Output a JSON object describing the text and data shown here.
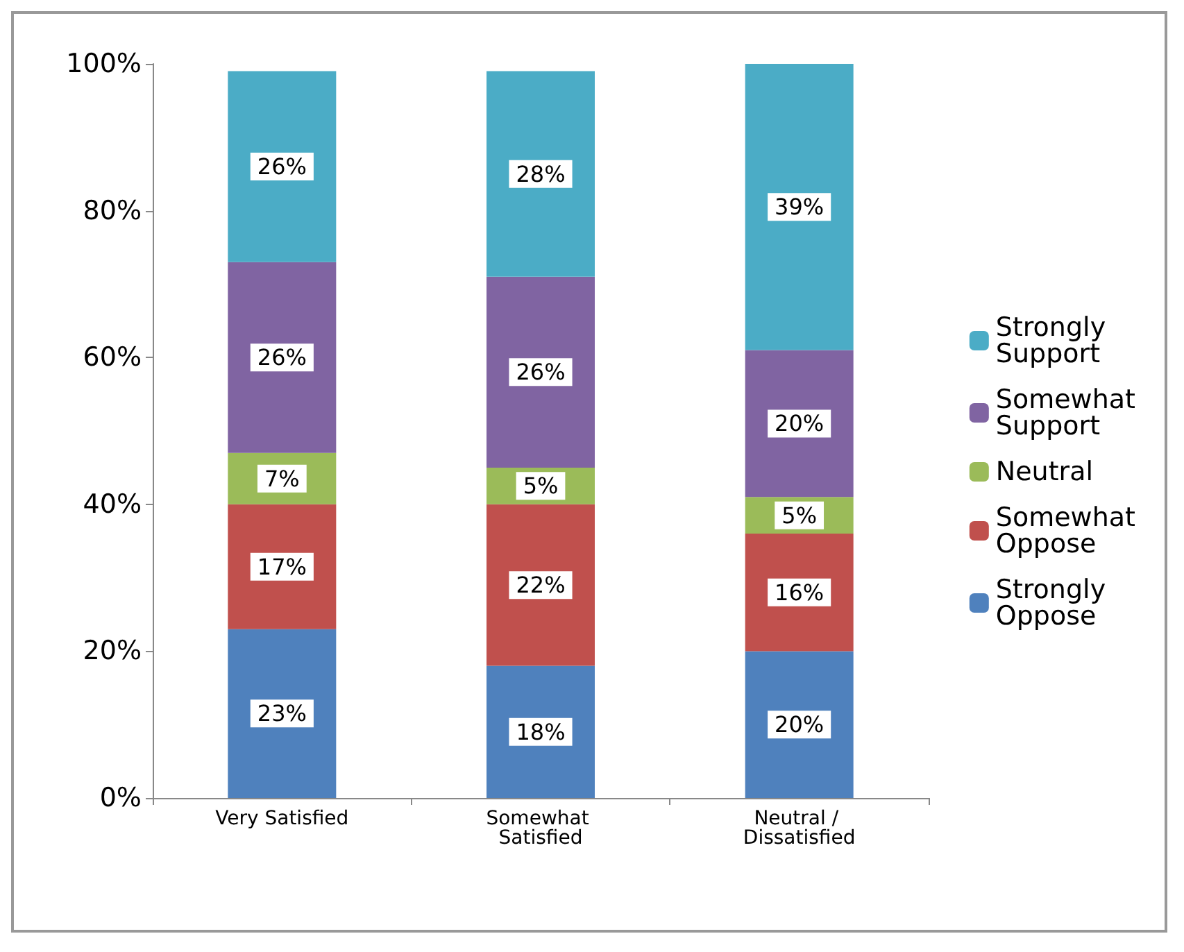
{
  "chart_data": {
    "type": "bar",
    "stacked": true,
    "categories": [
      "Very Satisfied",
      "Somewhat Satisfied",
      "Neutral / Dissatisfied"
    ],
    "series": [
      {
        "name": "Strongly Oppose",
        "color": "#4f81bd",
        "values": [
          23,
          18,
          20
        ],
        "value_labels": [
          "23%",
          "18%",
          "20%"
        ]
      },
      {
        "name": "Somewhat Oppose",
        "color": "#c0504d",
        "values": [
          17,
          22,
          16
        ],
        "value_labels": [
          "17%",
          "22%",
          "16%"
        ]
      },
      {
        "name": "Neutral",
        "color": "#9bbb59",
        "values": [
          7,
          5,
          5
        ],
        "value_labels": [
          "7%",
          "5%",
          "5%"
        ]
      },
      {
        "name": "Somewhat Support",
        "color": "#8064a2",
        "values": [
          26,
          26,
          20
        ],
        "value_labels": [
          "26%",
          "26%",
          "20%"
        ]
      },
      {
        "name": "Strongly Support",
        "color": "#4bacc6",
        "values": [
          26,
          28,
          39
        ],
        "value_labels": [
          "26%",
          "28%",
          "39%"
        ]
      }
    ],
    "ylim": [
      0,
      100
    ],
    "yticks": [
      {
        "value": 0,
        "label": "0%"
      },
      {
        "value": 20,
        "label": "20%"
      },
      {
        "value": 40,
        "label": "40%"
      },
      {
        "value": 60,
        "label": "60%"
      },
      {
        "value": 80,
        "label": "80%"
      },
      {
        "value": 100,
        "label": "100%"
      }
    ],
    "grid": false,
    "legend": "right"
  }
}
